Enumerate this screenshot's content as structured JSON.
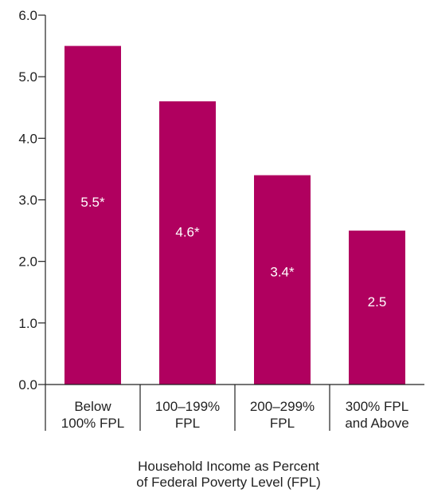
{
  "chart_data": {
    "type": "bar",
    "title": "",
    "ylabel": "",
    "xlabel_lines": [
      "Household Income as Percent",
      "of Federal Poverty Level (FPL)"
    ],
    "ylim": [
      0,
      6
    ],
    "yticks": [
      "0.0",
      "1.0",
      "2.0",
      "3.0",
      "4.0",
      "5.0",
      "6.0"
    ],
    "grid": false,
    "bar_color": "#b0005f",
    "categories": [
      [
        "Below",
        "100% FPL"
      ],
      [
        "100–199%",
        "FPL"
      ],
      [
        "200–299%",
        "FPL"
      ],
      [
        "300% FPL",
        "and Above"
      ]
    ],
    "values": [
      5.5,
      4.6,
      3.4,
      2.5
    ],
    "data_labels": [
      "5.5*",
      "4.6*",
      "3.4*",
      "2.5"
    ]
  }
}
